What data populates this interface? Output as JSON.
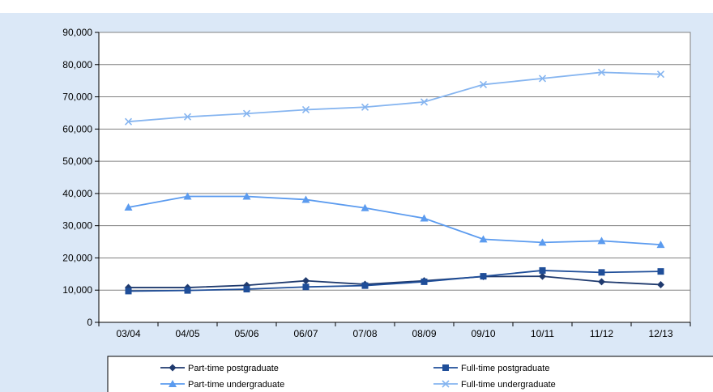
{
  "header": {
    "title_fragment": ""
  },
  "chart_data": {
    "type": "line",
    "title": "",
    "xlabel": "",
    "ylabel": "",
    "categories": [
      "03/04",
      "04/05",
      "05/06",
      "06/07",
      "07/08",
      "08/09",
      "09/10",
      "10/11",
      "11/12",
      "12/13"
    ],
    "ylim": [
      0,
      90000
    ],
    "yticks": [
      0,
      10000,
      20000,
      30000,
      40000,
      50000,
      60000,
      70000,
      80000,
      90000
    ],
    "ytick_labels": [
      "0",
      "10,000",
      "20,000",
      "30,000",
      "40,000",
      "50,000",
      "60,000",
      "70,000",
      "80,000",
      "90,000"
    ],
    "grid": true,
    "legend_position": "bottom",
    "series": [
      {
        "name": "Part-time postgraduate",
        "color": "#1f3a6e",
        "marker": "diamond",
        "values": [
          10800,
          10800,
          11500,
          12900,
          11800,
          12900,
          14200,
          14300,
          12600,
          11700
        ]
      },
      {
        "name": "Full-time postgraduate",
        "color": "#1f4e99",
        "marker": "square",
        "values": [
          9700,
          9900,
          10300,
          11000,
          11400,
          12600,
          14300,
          16100,
          15500,
          15800
        ]
      },
      {
        "name": "Part-time undergraduate",
        "color": "#5b9bef",
        "marker": "triangle",
        "values": [
          35700,
          39100,
          39100,
          38100,
          35500,
          32300,
          25800,
          24800,
          25300,
          24100
        ]
      },
      {
        "name": "Full-time undergraduate",
        "color": "#86b5f0",
        "marker": "cross",
        "values": [
          62300,
          63800,
          64800,
          66000,
          66800,
          68400,
          73800,
          75700,
          77600,
          77000
        ]
      }
    ]
  }
}
